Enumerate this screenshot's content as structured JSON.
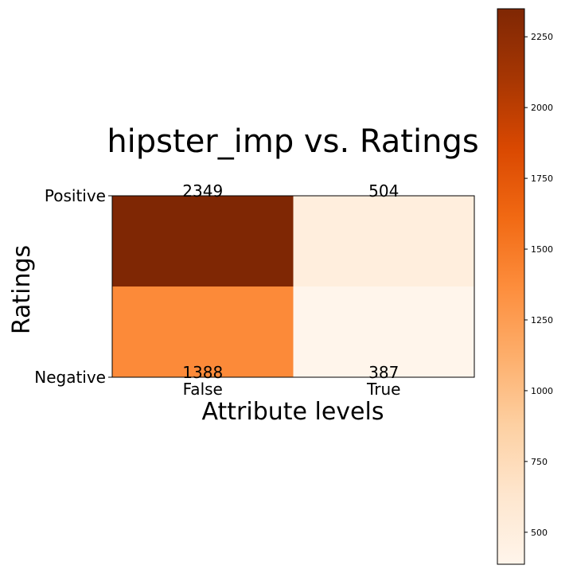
{
  "chart_data": {
    "type": "heatmap",
    "title": "hipster_imp vs. Ratings",
    "xlabel": "Attribute levels",
    "ylabel": "Ratings",
    "x_categories": [
      "False",
      "True"
    ],
    "y_categories": [
      "Positive",
      "Negative"
    ],
    "values": [
      [
        2349,
        504
      ],
      [
        1388,
        387
      ]
    ],
    "colormap": "Oranges",
    "colorbar": {
      "min": 387,
      "max": 2349,
      "ticks": [
        500,
        750,
        1000,
        1250,
        1500,
        1750,
        2000,
        2250
      ]
    },
    "grid": false
  }
}
